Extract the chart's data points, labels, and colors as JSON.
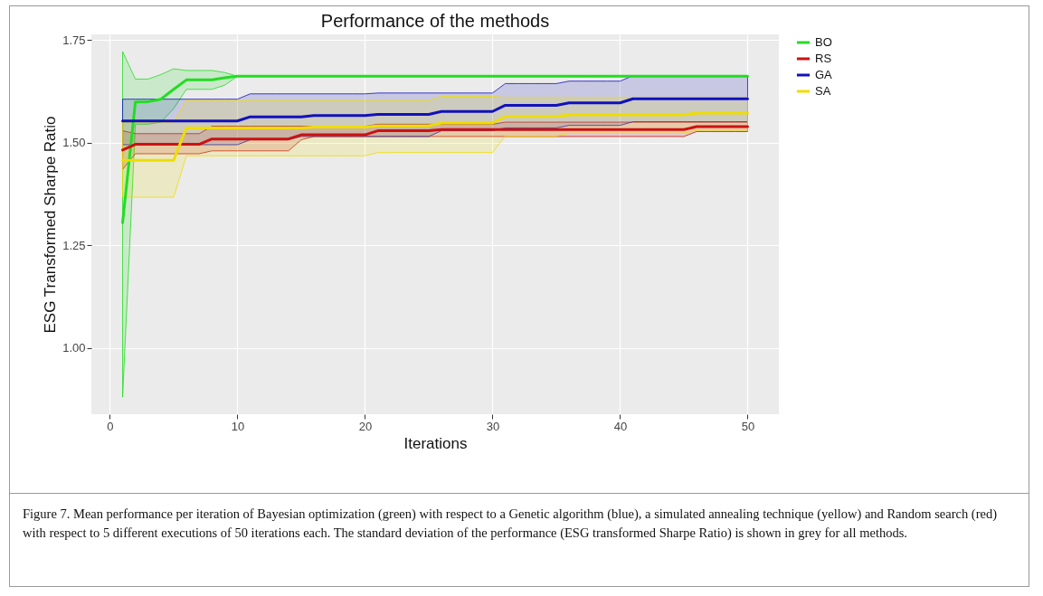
{
  "chart_data": {
    "type": "line",
    "title": "Performance of the methods",
    "xlabel": "Iterations",
    "ylabel": "ESG Transformed Sharpe Ratio",
    "x": [
      1,
      2,
      3,
      4,
      5,
      6,
      7,
      8,
      9,
      10,
      11,
      12,
      13,
      14,
      15,
      16,
      17,
      18,
      19,
      20,
      21,
      22,
      23,
      24,
      25,
      26,
      27,
      28,
      29,
      30,
      31,
      32,
      33,
      34,
      35,
      36,
      37,
      38,
      39,
      40,
      41,
      42,
      43,
      44,
      45,
      46,
      47,
      48,
      49,
      50
    ],
    "xlim": [
      -1.45,
      52.45
    ],
    "xticks": [
      0,
      10,
      20,
      30,
      40,
      50
    ],
    "ylim": [
      0.838,
      1.764
    ],
    "yticks": [
      {
        "value": 1,
        "label": "1.00"
      },
      1.25,
      {
        "value": 1.5,
        "label": "1.50"
      },
      1.75
    ],
    "grid": true,
    "legend": "right",
    "line_style": "solid",
    "marker": "none",
    "series": [
      {
        "name": "BO",
        "color": "#22dd22",
        "values": [
          1.305,
          1.599,
          1.6,
          1.606,
          1.63,
          1.653,
          1.653,
          1.653,
          1.658,
          1.662,
          1.662,
          1.662,
          1.662,
          1.662,
          1.662,
          1.662,
          1.662,
          1.662,
          1.662,
          1.662,
          1.662,
          1.662,
          1.662,
          1.662,
          1.662,
          1.662,
          1.662,
          1.662,
          1.662,
          1.662,
          1.662,
          1.662,
          1.662,
          1.662,
          1.662,
          1.662,
          1.662,
          1.662,
          1.662,
          1.662,
          1.662,
          1.662,
          1.662,
          1.662,
          1.662,
          1.662,
          1.662,
          1.662,
          1.662,
          1.662
        ],
        "upper": [
          1.722,
          1.655,
          1.655,
          1.666,
          1.68,
          1.676,
          1.676,
          1.676,
          1.671,
          1.662,
          1.662,
          1.662,
          1.662,
          1.662,
          1.662,
          1.662,
          1.662,
          1.662,
          1.662,
          1.662,
          1.662,
          1.662,
          1.662,
          1.662,
          1.662,
          1.662,
          1.662,
          1.662,
          1.662,
          1.662,
          1.662,
          1.662,
          1.662,
          1.662,
          1.662,
          1.662,
          1.662,
          1.662,
          1.662,
          1.662,
          1.662,
          1.662,
          1.662,
          1.662,
          1.662,
          1.662,
          1.662,
          1.662,
          1.662,
          1.662
        ],
        "lower": [
          0.88,
          1.545,
          1.545,
          1.55,
          1.583,
          1.63,
          1.63,
          1.63,
          1.64,
          1.662,
          1.662,
          1.662,
          1.662,
          1.662,
          1.662,
          1.662,
          1.662,
          1.662,
          1.662,
          1.662,
          1.662,
          1.662,
          1.662,
          1.662,
          1.662,
          1.662,
          1.662,
          1.662,
          1.662,
          1.662,
          1.662,
          1.662,
          1.662,
          1.662,
          1.662,
          1.662,
          1.662,
          1.662,
          1.662,
          1.662,
          1.662,
          1.662,
          1.662,
          1.662,
          1.662,
          1.662,
          1.662,
          1.662,
          1.662,
          1.662
        ]
      },
      {
        "name": "RS",
        "color": "#cc1111",
        "values": [
          1.482,
          1.496,
          1.496,
          1.496,
          1.496,
          1.496,
          1.496,
          1.509,
          1.509,
          1.509,
          1.509,
          1.509,
          1.509,
          1.509,
          1.519,
          1.519,
          1.519,
          1.519,
          1.519,
          1.519,
          1.529,
          1.529,
          1.529,
          1.529,
          1.529,
          1.532,
          1.532,
          1.532,
          1.532,
          1.532,
          1.532,
          1.532,
          1.532,
          1.532,
          1.532,
          1.532,
          1.532,
          1.532,
          1.532,
          1.532,
          1.532,
          1.532,
          1.532,
          1.532,
          1.532,
          1.539,
          1.539,
          1.539,
          1.539,
          1.539
        ],
        "upper": [
          1.529,
          1.522,
          1.522,
          1.522,
          1.522,
          1.522,
          1.522,
          1.54,
          1.54,
          1.54,
          1.54,
          1.54,
          1.54,
          1.54,
          1.54,
          1.54,
          1.54,
          1.54,
          1.54,
          1.54,
          1.545,
          1.545,
          1.545,
          1.545,
          1.545,
          1.545,
          1.545,
          1.545,
          1.545,
          1.545,
          1.55,
          1.55,
          1.55,
          1.55,
          1.55,
          1.55,
          1.55,
          1.55,
          1.55,
          1.55,
          1.55,
          1.55,
          1.55,
          1.55,
          1.55,
          1.55,
          1.55,
          1.55,
          1.55,
          1.55
        ],
        "lower": [
          1.435,
          1.473,
          1.473,
          1.473,
          1.473,
          1.473,
          1.473,
          1.48,
          1.48,
          1.48,
          1.48,
          1.48,
          1.48,
          1.48,
          1.507,
          1.515,
          1.515,
          1.515,
          1.515,
          1.515,
          1.515,
          1.515,
          1.515,
          1.515,
          1.515,
          1.515,
          1.515,
          1.515,
          1.515,
          1.515,
          1.515,
          1.515,
          1.515,
          1.515,
          1.515,
          1.515,
          1.515,
          1.515,
          1.515,
          1.515,
          1.515,
          1.515,
          1.515,
          1.515,
          1.515,
          1.527,
          1.527,
          1.527,
          1.527,
          1.527
        ]
      },
      {
        "name": "GA",
        "color": "#1111bb",
        "values": [
          1.553,
          1.553,
          1.553,
          1.553,
          1.553,
          1.553,
          1.553,
          1.553,
          1.553,
          1.553,
          1.563,
          1.563,
          1.563,
          1.563,
          1.563,
          1.566,
          1.566,
          1.566,
          1.566,
          1.566,
          1.569,
          1.569,
          1.569,
          1.569,
          1.569,
          1.576,
          1.576,
          1.576,
          1.576,
          1.576,
          1.591,
          1.591,
          1.591,
          1.591,
          1.591,
          1.597,
          1.597,
          1.597,
          1.597,
          1.597,
          1.607,
          1.607,
          1.607,
          1.607,
          1.607,
          1.607,
          1.607,
          1.607,
          1.607,
          1.607
        ],
        "upper": [
          1.606,
          1.606,
          1.606,
          1.606,
          1.606,
          1.606,
          1.606,
          1.606,
          1.606,
          1.606,
          1.619,
          1.619,
          1.619,
          1.619,
          1.619,
          1.619,
          1.619,
          1.619,
          1.619,
          1.619,
          1.621,
          1.621,
          1.621,
          1.621,
          1.621,
          1.621,
          1.621,
          1.621,
          1.621,
          1.621,
          1.644,
          1.644,
          1.644,
          1.644,
          1.644,
          1.65,
          1.65,
          1.65,
          1.65,
          1.65,
          1.663,
          1.663,
          1.663,
          1.663,
          1.663,
          1.663,
          1.663,
          1.663,
          1.663,
          1.663
        ],
        "lower": [
          1.495,
          1.495,
          1.495,
          1.495,
          1.495,
          1.495,
          1.495,
          1.495,
          1.495,
          1.495,
          1.507,
          1.507,
          1.507,
          1.507,
          1.515,
          1.515,
          1.515,
          1.515,
          1.515,
          1.515,
          1.515,
          1.515,
          1.515,
          1.515,
          1.515,
          1.529,
          1.529,
          1.529,
          1.529,
          1.529,
          1.536,
          1.536,
          1.536,
          1.536,
          1.536,
          1.542,
          1.542,
          1.542,
          1.542,
          1.542,
          1.551,
          1.551,
          1.551,
          1.551,
          1.551,
          1.551,
          1.551,
          1.551,
          1.551,
          1.551
        ]
      },
      {
        "name": "SA",
        "color": "#eedd00",
        "values": [
          1.457,
          1.457,
          1.457,
          1.457,
          1.457,
          1.536,
          1.536,
          1.536,
          1.536,
          1.536,
          1.536,
          1.536,
          1.536,
          1.536,
          1.536,
          1.538,
          1.538,
          1.538,
          1.538,
          1.538,
          1.541,
          1.541,
          1.541,
          1.541,
          1.541,
          1.548,
          1.548,
          1.548,
          1.548,
          1.548,
          1.564,
          1.564,
          1.564,
          1.564,
          1.564,
          1.568,
          1.568,
          1.568,
          1.568,
          1.568,
          1.568,
          1.568,
          1.568,
          1.568,
          1.568,
          1.572,
          1.572,
          1.572,
          1.572,
          1.572
        ],
        "upper": [
          1.55,
          1.55,
          1.55,
          1.55,
          1.55,
          1.603,
          1.603,
          1.603,
          1.603,
          1.603,
          1.603,
          1.603,
          1.603,
          1.603,
          1.603,
          1.603,
          1.603,
          1.603,
          1.603,
          1.603,
          1.603,
          1.603,
          1.603,
          1.603,
          1.603,
          1.613,
          1.613,
          1.613,
          1.613,
          1.613,
          1.61,
          1.61,
          1.61,
          1.61,
          1.61,
          1.61,
          1.61,
          1.61,
          1.61,
          1.61,
          1.61,
          1.61,
          1.61,
          1.61,
          1.61,
          1.61,
          1.61,
          1.61,
          1.61,
          1.61
        ],
        "lower": [
          1.367,
          1.367,
          1.367,
          1.367,
          1.367,
          1.468,
          1.468,
          1.468,
          1.468,
          1.468,
          1.468,
          1.468,
          1.468,
          1.468,
          1.468,
          1.468,
          1.468,
          1.468,
          1.468,
          1.468,
          1.476,
          1.476,
          1.476,
          1.476,
          1.476,
          1.476,
          1.476,
          1.476,
          1.476,
          1.476,
          1.516,
          1.516,
          1.516,
          1.516,
          1.516,
          1.523,
          1.523,
          1.523,
          1.523,
          1.523,
          1.523,
          1.523,
          1.523,
          1.523,
          1.523,
          1.53,
          1.53,
          1.53,
          1.53,
          1.53
        ]
      }
    ],
    "annotations": [
      "Figure 7. Mean performance per iteration of Bayesian optimization (green) with respect to a Genetic algorithm (blue), a simulated annealing technique (yellow) and Random search (red) with respect to 5 different executions of 50 iterations each. The standard deviation of the performance (ESG transformed Sharpe Ratio) is shown in grey for all methods."
    ]
  }
}
